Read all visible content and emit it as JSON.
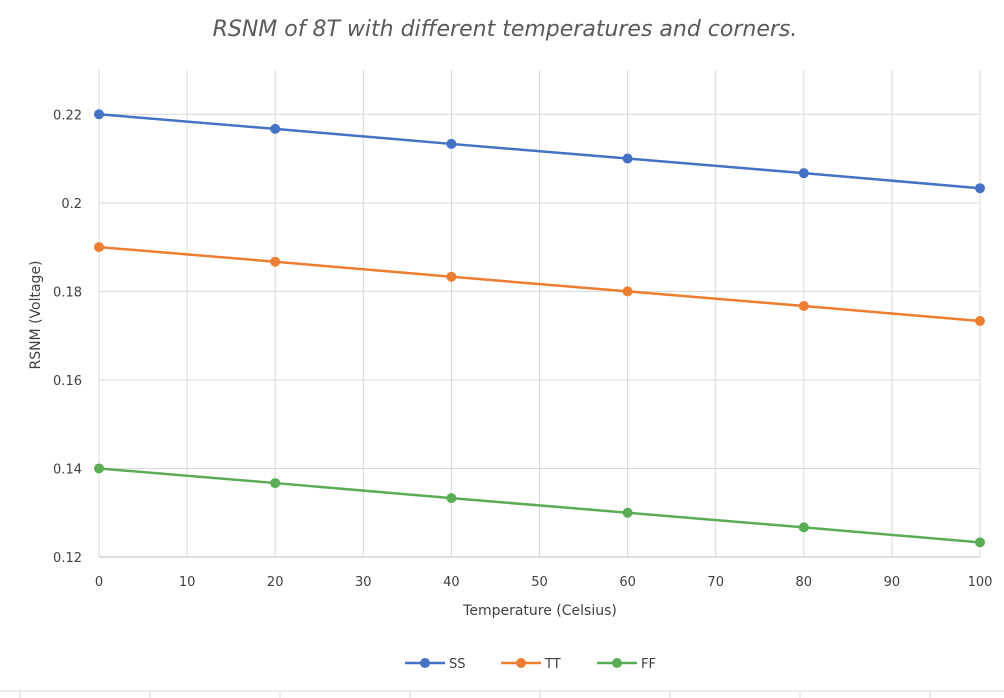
{
  "chart_data": {
    "type": "line",
    "title": "RSNM of 8T with different temperatures and corners.",
    "xlabel": "Temperature (Celsius)",
    "ylabel": "RSNM (Voltage)",
    "xlim": [
      0,
      100
    ],
    "ylim": [
      0.12,
      0.23
    ],
    "x_ticks": [
      0,
      10,
      20,
      30,
      40,
      50,
      60,
      70,
      80,
      90,
      100
    ],
    "y_ticks": [
      0.12,
      0.14,
      0.16,
      0.18,
      0.2,
      0.22
    ],
    "y_tick_labels": [
      "0.12",
      "0.14",
      "0.16",
      "0.18",
      "0.2",
      "0.22"
    ],
    "grid": true,
    "legend_position": "bottom",
    "x": [
      0,
      20,
      40,
      60,
      80,
      100
    ],
    "series": [
      {
        "name": "SS",
        "color": "#4472C4",
        "values": [
          0.22,
          0.2167,
          0.2133,
          0.21,
          0.2067,
          0.2033
        ]
      },
      {
        "name": "TT",
        "color": "#ED7D31",
        "values": [
          0.19,
          0.1867,
          0.1833,
          0.18,
          0.1767,
          0.1733
        ]
      },
      {
        "name": "FF",
        "color": "#5BAD55",
        "values": [
          0.14,
          0.1367,
          0.1333,
          0.13,
          0.1267,
          0.1233
        ]
      }
    ]
  }
}
